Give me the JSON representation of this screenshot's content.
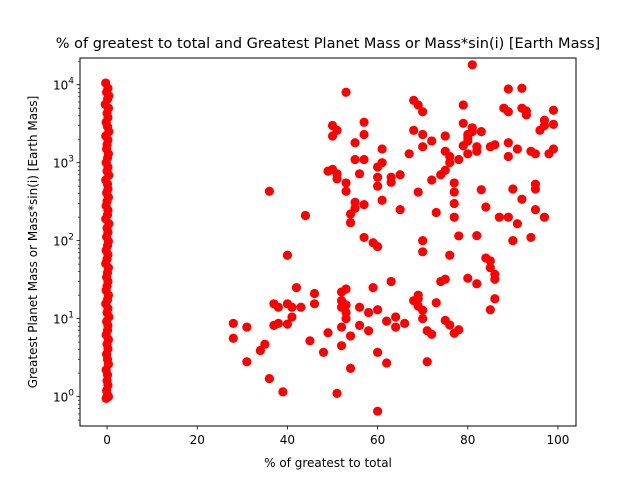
{
  "chart_data": {
    "type": "scatter",
    "title": "% of greatest to total and Greatest Planet Mass or Mass*sin(i) [Earth Mass]",
    "xlabel": "% of greatest to total",
    "ylabel": "Greatest Planet Mass or Mass*sin(i) [Earth Mass]",
    "xlim": [
      -6,
      104
    ],
    "ylim": [
      0.42,
      22000
    ],
    "yscale": "log",
    "grid": false,
    "legend": "none",
    "marker_color": "#ff0000",
    "x_ticks": [
      {
        "value": 0,
        "label": "0"
      },
      {
        "value": 20,
        "label": "20"
      },
      {
        "value": 40,
        "label": "40"
      },
      {
        "value": 60,
        "label": "60"
      },
      {
        "value": 80,
        "label": "80"
      },
      {
        "value": 100,
        "label": "100"
      }
    ],
    "y_ticks": [
      {
        "value": 1,
        "base": "10",
        "exp": "0"
      },
      {
        "value": 10,
        "base": "10",
        "exp": "1"
      },
      {
        "value": 100,
        "base": "10",
        "exp": "2"
      },
      {
        "value": 1000,
        "base": "10",
        "exp": "3"
      },
      {
        "value": 10000,
        "base": "10",
        "exp": "4"
      }
    ],
    "series": [
      {
        "points": [
          [
            -0.3,
            10500
          ],
          [
            0.2,
            9000
          ],
          [
            -0.1,
            8000
          ],
          [
            0.4,
            7200
          ],
          [
            0.1,
            6500
          ],
          [
            -0.4,
            5600
          ],
          [
            0.3,
            5000
          ],
          [
            0,
            4300
          ],
          [
            0.2,
            3800
          ],
          [
            -0.2,
            3300
          ],
          [
            0.1,
            2900
          ],
          [
            0.4,
            2500
          ],
          [
            -0.3,
            2200
          ],
          [
            0.2,
            1950
          ],
          [
            0,
            1700
          ],
          [
            -0.1,
            1500
          ],
          [
            0.3,
            1300
          ],
          [
            0.1,
            1150
          ],
          [
            -0.2,
            1000
          ],
          [
            0.2,
            880
          ],
          [
            0,
            780
          ],
          [
            0.4,
            690
          ],
          [
            -0.3,
            600
          ],
          [
            0.1,
            530
          ],
          [
            0.2,
            460
          ],
          [
            -0.1,
            410
          ],
          [
            0.3,
            360
          ],
          [
            0,
            320
          ],
          [
            -0.2,
            280
          ],
          [
            0.2,
            245
          ],
          [
            0.1,
            215
          ],
          [
            -0.3,
            190
          ],
          [
            0.4,
            165
          ],
          [
            0,
            145
          ],
          [
            0.2,
            128
          ],
          [
            -0.1,
            112
          ],
          [
            0.3,
            98
          ],
          [
            0.1,
            86
          ],
          [
            -0.2,
            75
          ],
          [
            0.2,
            66
          ],
          [
            0,
            58
          ],
          [
            -0.3,
            51
          ],
          [
            0.3,
            45
          ],
          [
            0.1,
            39
          ],
          [
            -0.1,
            34
          ],
          [
            0.2,
            30
          ],
          [
            0,
            26
          ],
          [
            -0.2,
            23
          ],
          [
            0.3,
            20
          ],
          [
            0.1,
            17.5
          ],
          [
            -0.3,
            15.5
          ],
          [
            0.2,
            13.5
          ],
          [
            0,
            12
          ],
          [
            0.4,
            10.5
          ],
          [
            -0.1,
            9.2
          ],
          [
            0.2,
            8.1
          ],
          [
            0.1,
            7.1
          ],
          [
            -0.2,
            6.2
          ],
          [
            0.3,
            5.4
          ],
          [
            0,
            4.7
          ],
          [
            0.2,
            4.1
          ],
          [
            -0.1,
            3.5
          ],
          [
            0.1,
            3.0
          ],
          [
            0.3,
            2.6
          ],
          [
            -0.2,
            2.2
          ],
          [
            0.1,
            1.9
          ],
          [
            0,
            1.6
          ],
          [
            0.2,
            1.4
          ],
          [
            -0.1,
            1.2
          ],
          [
            0.1,
            1.05
          ],
          [
            -0.2,
            0.95
          ],
          [
            0.3,
            1.0
          ],
          [
            28,
            8.7
          ],
          [
            28,
            5.6
          ],
          [
            31,
            7.8
          ],
          [
            31,
            2.8
          ],
          [
            34,
            3.9
          ],
          [
            35,
            4.7
          ],
          [
            36,
            1.7
          ],
          [
            36,
            430
          ],
          [
            37,
            15.5
          ],
          [
            37,
            8.2
          ],
          [
            38,
            8.7
          ],
          [
            38,
            14
          ],
          [
            39,
            1.15
          ],
          [
            40,
            15.5
          ],
          [
            40,
            65
          ],
          [
            40,
            8.5
          ],
          [
            41,
            10.5
          ],
          [
            41,
            14
          ],
          [
            42,
            25
          ],
          [
            43,
            14
          ],
          [
            44,
            210
          ],
          [
            45,
            5.2
          ],
          [
            46,
            21
          ],
          [
            46,
            15.5
          ],
          [
            48,
            3.7
          ],
          [
            49,
            6.6
          ],
          [
            49,
            780
          ],
          [
            50,
            820
          ],
          [
            50,
            3000
          ],
          [
            50,
            2200
          ],
          [
            51,
            620
          ],
          [
            51,
            720
          ],
          [
            51,
            2600
          ],
          [
            51,
            1.1
          ],
          [
            52,
            17
          ],
          [
            52,
            22
          ],
          [
            52,
            7.8
          ],
          [
            52,
            14
          ],
          [
            52,
            4.5
          ],
          [
            53,
            8000
          ],
          [
            53,
            550
          ],
          [
            53,
            430
          ],
          [
            53,
            15
          ],
          [
            53,
            12
          ],
          [
            53,
            10
          ],
          [
            53,
            24
          ],
          [
            54,
            2.3
          ],
          [
            54,
            6
          ],
          [
            54,
            170
          ],
          [
            54,
            220
          ],
          [
            55,
            1800
          ],
          [
            55,
            1100
          ],
          [
            55,
            310
          ],
          [
            55,
            260
          ],
          [
            56,
            720
          ],
          [
            56,
            14
          ],
          [
            56,
            8.2
          ],
          [
            57,
            2300
          ],
          [
            57,
            3300
          ],
          [
            57,
            1100
          ],
          [
            57,
            110
          ],
          [
            57,
            290
          ],
          [
            58,
            7
          ],
          [
            58,
            12
          ],
          [
            59,
            94
          ],
          [
            59,
            25
          ],
          [
            60,
            880
          ],
          [
            60,
            650
          ],
          [
            60,
            500
          ],
          [
            60,
            3.7
          ],
          [
            60,
            84
          ],
          [
            60,
            0.65
          ],
          [
            60,
            13
          ],
          [
            61,
            1500
          ],
          [
            61,
            1000
          ],
          [
            61,
            330
          ],
          [
            62,
            9.3
          ],
          [
            62,
            2.7
          ],
          [
            63,
            650
          ],
          [
            63,
            30
          ],
          [
            63,
            560
          ],
          [
            64,
            10.5
          ],
          [
            64,
            7.8
          ],
          [
            65,
            250
          ],
          [
            65,
            700
          ],
          [
            66,
            8.7
          ],
          [
            67,
            1300
          ],
          [
            68,
            2600
          ],
          [
            68,
            17
          ],
          [
            68,
            6300
          ],
          [
            69,
            5500
          ],
          [
            69,
            20
          ],
          [
            69,
            18
          ],
          [
            69,
            420
          ],
          [
            69,
            14.5
          ],
          [
            70,
            4500
          ],
          [
            70,
            2300
          ],
          [
            70,
            100
          ],
          [
            70,
            72
          ],
          [
            70,
            12.8
          ],
          [
            70,
            10
          ],
          [
            70,
            1600
          ],
          [
            71,
            2.8
          ],
          [
            71,
            7
          ],
          [
            72,
            6.3
          ],
          [
            72,
            1900
          ],
          [
            72,
            600
          ],
          [
            73,
            230
          ],
          [
            73,
            16
          ],
          [
            74,
            700
          ],
          [
            74,
            30
          ],
          [
            75,
            2200
          ],
          [
            75,
            800
          ],
          [
            75,
            1400
          ],
          [
            75,
            32
          ],
          [
            75,
            9.5
          ],
          [
            76,
            1000
          ],
          [
            76,
            1200
          ],
          [
            76,
            65
          ],
          [
            76,
            8.3
          ],
          [
            77,
            550
          ],
          [
            77,
            420
          ],
          [
            77,
            300
          ],
          [
            77,
            200
          ],
          [
            77,
            6.5
          ],
          [
            78,
            1100
          ],
          [
            78,
            115
          ],
          [
            78,
            7.2
          ],
          [
            79,
            1650
          ],
          [
            79,
            5500
          ],
          [
            79,
            3200
          ],
          [
            80,
            2100
          ],
          [
            80,
            1300
          ],
          [
            80,
            1900
          ],
          [
            80,
            2300
          ],
          [
            80,
            33
          ],
          [
            81,
            2500
          ],
          [
            81,
            18000
          ],
          [
            81,
            2800
          ],
          [
            82,
            1400
          ],
          [
            82,
            1600
          ],
          [
            82,
            28
          ],
          [
            82,
            116
          ],
          [
            83,
            2500
          ],
          [
            83,
            450
          ],
          [
            84,
            60
          ],
          [
            84,
            270
          ],
          [
            85,
            55
          ],
          [
            85,
            45
          ],
          [
            85,
            1600
          ],
          [
            85,
            13
          ],
          [
            86,
            1700
          ],
          [
            86,
            32
          ],
          [
            86,
            37
          ],
          [
            86,
            18
          ],
          [
            87,
            200
          ],
          [
            88,
            5000
          ],
          [
            89,
            8800
          ],
          [
            89,
            4500
          ],
          [
            89,
            1800
          ],
          [
            89,
            200
          ],
          [
            89,
            1200
          ],
          [
            90,
            460
          ],
          [
            90,
            100
          ],
          [
            91,
            165
          ],
          [
            91,
            1500
          ],
          [
            92,
            9000
          ],
          [
            92,
            340
          ],
          [
            92,
            5000
          ],
          [
            93,
            4600
          ],
          [
            93,
            4100
          ],
          [
            94,
            110
          ],
          [
            94,
            1400
          ],
          [
            95,
            530
          ],
          [
            95,
            460
          ],
          [
            95,
            250
          ],
          [
            95,
            1300
          ],
          [
            96,
            2600
          ],
          [
            97,
            3000
          ],
          [
            97,
            3500
          ],
          [
            98,
            1300
          ],
          [
            99,
            4700
          ],
          [
            99,
            1500
          ],
          [
            99,
            3100
          ],
          [
            97,
            200
          ]
        ]
      }
    ]
  }
}
